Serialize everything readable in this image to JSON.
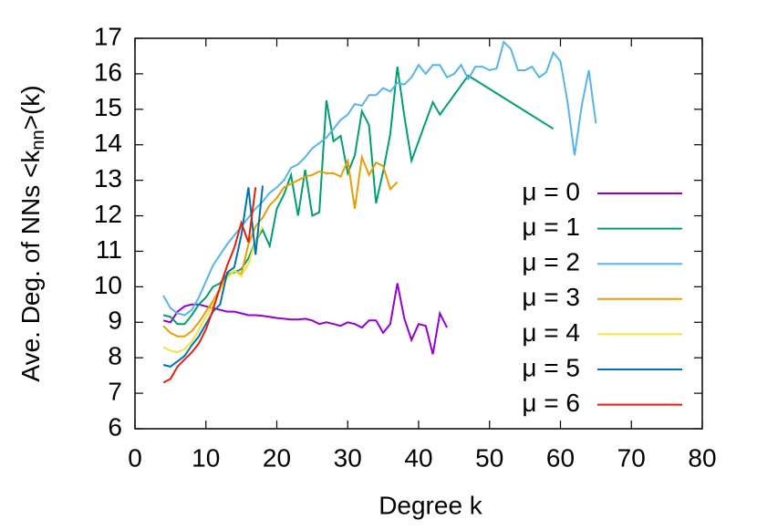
{
  "chart_data": {
    "type": "line",
    "xlabel": "Degree k",
    "ylabel": [
      "Ave. Deg. of NNs <k",
      "nn",
      ">(k)"
    ],
    "xlim": [
      0,
      80
    ],
    "xticks": [
      0,
      10,
      20,
      30,
      40,
      50,
      60,
      70,
      80
    ],
    "ylim": [
      6,
      17
    ],
    "yticks": [
      6,
      7,
      8,
      9,
      10,
      11,
      12,
      13,
      14,
      15,
      16,
      17
    ],
    "legend": "right",
    "series": [
      {
        "name": "μ = 0",
        "color": "#9400d3",
        "x": [
          4,
          5,
          6,
          7,
          8,
          9,
          10,
          11,
          12,
          13,
          14,
          15,
          16,
          17,
          18,
          19,
          20,
          21,
          22,
          23,
          24,
          25,
          26,
          27,
          28,
          29,
          30,
          31,
          32,
          33,
          34,
          35,
          36,
          37,
          38,
          39,
          40,
          41,
          42,
          43,
          44
        ],
        "values": [
          9.05,
          9.0,
          9.3,
          9.45,
          9.5,
          9.5,
          9.45,
          9.4,
          9.35,
          9.3,
          9.3,
          9.25,
          9.2,
          9.2,
          9.18,
          9.15,
          9.12,
          9.1,
          9.08,
          9.08,
          9.1,
          9.05,
          8.95,
          9.0,
          8.95,
          8.9,
          9.0,
          8.95,
          8.85,
          9.05,
          9.05,
          8.7,
          8.95,
          10.1,
          9.1,
          8.5,
          8.95,
          8.9,
          8.1,
          9.25,
          8.85
        ]
      },
      {
        "name": "μ = 1",
        "color": "#009e73",
        "x": [
          4,
          5,
          6,
          7,
          8,
          9,
          10,
          11,
          12,
          13,
          14,
          15,
          16,
          17,
          18,
          19,
          20,
          21,
          22,
          23,
          24,
          25,
          26,
          27,
          28,
          29,
          30,
          31,
          32,
          33,
          34,
          35,
          36,
          37,
          38,
          39,
          40,
          42,
          43,
          47,
          59
        ],
        "values": [
          9.2,
          9.15,
          8.95,
          8.95,
          9.2,
          9.5,
          9.7,
          10.0,
          10.1,
          10.35,
          10.4,
          10.5,
          10.8,
          11.3,
          11.6,
          11.15,
          12.2,
          12.6,
          13.15,
          12.0,
          13.3,
          12.0,
          12.1,
          15.25,
          14.1,
          14.25,
          13.2,
          13.7,
          14.95,
          14.55,
          12.35,
          13.25,
          14.3,
          16.2,
          14.8,
          13.55,
          14.1,
          15.2,
          14.85,
          15.95,
          14.45
        ]
      },
      {
        "name": "μ = 2",
        "color": "#56b4e9",
        "x": [
          4,
          5,
          6,
          7,
          8,
          9,
          10,
          11,
          12,
          13,
          14,
          15,
          16,
          17,
          18,
          19,
          20,
          21,
          22,
          23,
          24,
          25,
          26,
          27,
          28,
          29,
          30,
          31,
          32,
          33,
          34,
          35,
          36,
          37,
          38,
          39,
          40,
          41,
          42,
          43,
          44,
          45,
          46,
          47,
          48,
          49,
          50,
          51,
          52,
          53,
          54,
          55,
          56,
          57,
          58,
          59,
          60,
          61,
          62,
          63,
          64,
          65
        ],
        "values": [
          9.75,
          9.4,
          9.25,
          9.2,
          9.35,
          9.7,
          10.15,
          10.6,
          10.9,
          11.2,
          11.45,
          11.7,
          11.95,
          12.2,
          12.4,
          12.65,
          12.8,
          13.0,
          13.35,
          13.45,
          13.65,
          13.9,
          14.05,
          14.2,
          14.45,
          14.7,
          14.85,
          15.15,
          15.1,
          15.4,
          15.4,
          15.6,
          15.5,
          15.75,
          15.7,
          15.9,
          16.25,
          16.0,
          16.25,
          16.25,
          15.9,
          16.0,
          16.25,
          15.85,
          16.2,
          16.2,
          16.1,
          16.15,
          16.9,
          16.7,
          16.1,
          16.1,
          16.2,
          15.9,
          16.05,
          16.6,
          16.35,
          15.2,
          13.7,
          15.1,
          16.1,
          14.6
        ]
      },
      {
        "name": "μ = 3",
        "color": "#e69f00",
        "x": [
          4,
          5,
          6,
          7,
          8,
          9,
          10,
          11,
          12,
          13,
          14,
          15,
          16,
          17,
          18,
          19,
          20,
          21,
          22,
          23,
          24,
          25,
          26,
          27,
          28,
          29,
          30,
          31,
          32,
          33,
          34,
          35,
          36,
          37
        ],
        "values": [
          8.9,
          8.7,
          8.6,
          8.6,
          8.75,
          9.0,
          9.3,
          9.6,
          9.95,
          10.3,
          10.45,
          10.35,
          11.2,
          11.7,
          11.95,
          12.3,
          12.5,
          12.8,
          12.9,
          13.0,
          13.1,
          13.15,
          13.25,
          13.2,
          13.2,
          13.1,
          13.55,
          12.2,
          13.65,
          13.15,
          13.5,
          13.4,
          12.75,
          12.95
        ]
      },
      {
        "name": "μ = 4",
        "color": "#f0e442",
        "x": [
          4,
          5,
          6,
          7,
          8,
          9,
          10,
          11,
          12,
          13,
          14,
          15,
          16,
          17,
          18
        ],
        "values": [
          8.3,
          8.2,
          8.15,
          8.25,
          8.45,
          8.8,
          9.15,
          9.5,
          9.9,
          10.25,
          10.45,
          10.3,
          10.65,
          11.3,
          11.7
        ]
      },
      {
        "name": "μ = 5",
        "color": "#0072b2",
        "x": [
          4,
          5,
          6,
          7,
          8,
          9,
          10,
          11,
          12,
          13,
          14,
          15,
          16,
          17,
          18
        ],
        "values": [
          7.8,
          7.75,
          7.9,
          8.05,
          8.35,
          8.6,
          8.95,
          9.3,
          9.5,
          10.4,
          10.55,
          11.45,
          12.8,
          10.9,
          12.85
        ]
      },
      {
        "name": "μ = 6",
        "color": "#e51e10",
        "x": [
          4,
          5,
          6,
          7,
          8,
          9,
          10,
          11,
          12,
          13,
          14,
          15,
          16,
          17
        ],
        "values": [
          7.3,
          7.4,
          7.75,
          7.95,
          8.15,
          8.4,
          8.8,
          9.35,
          10.0,
          10.6,
          11.1,
          11.8,
          11.25,
          12.8
        ]
      }
    ]
  }
}
